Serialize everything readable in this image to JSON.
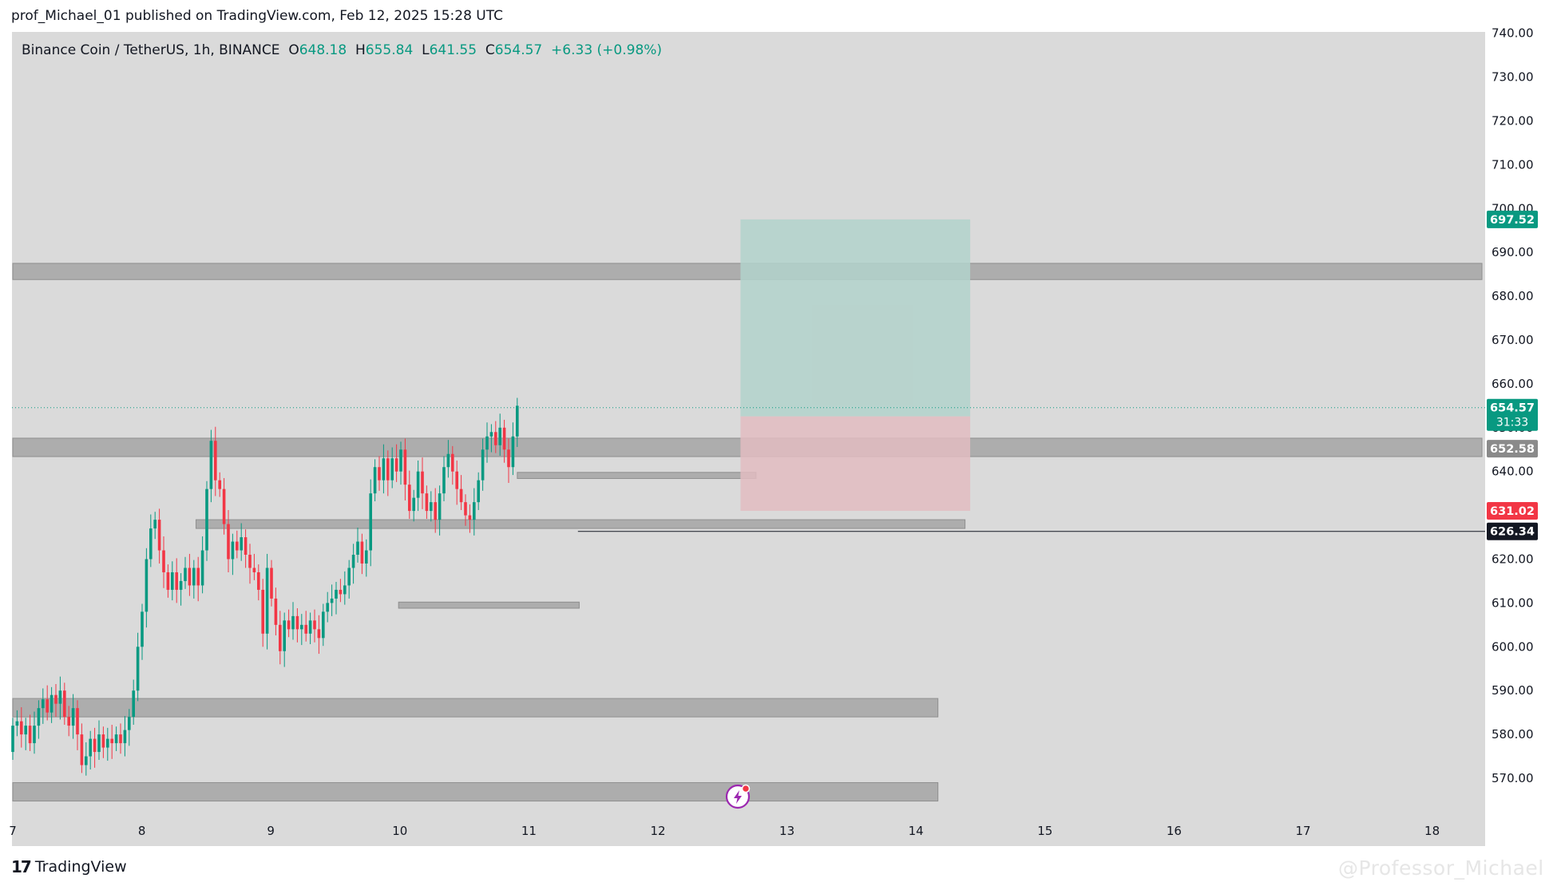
{
  "header": {
    "published": "prof_Michael_01 published on TradingView.com, Feb 12, 2025 15:28 UTC"
  },
  "legend": {
    "symbol": "Binance Coin / TetherUS, 1h, BINANCE",
    "o_label": "O",
    "o": "648.18",
    "h_label": "H",
    "h": "655.84",
    "l_label": "L",
    "l": "641.55",
    "c_label": "C",
    "c": "654.57",
    "change": "+6.33 (+0.98%)"
  },
  "colors": {
    "up": "#089981",
    "down": "#f23645",
    "chart_bg": "#dadada",
    "zone": "#a4a4a4",
    "target": "#b2d2cb",
    "stop": "#e2bcc1"
  },
  "footer": {
    "brand": "TradingView",
    "watermark": "@Professor_Michael"
  },
  "chart_data": {
    "type": "candlestick",
    "y_range": [
      565,
      742
    ],
    "x_range": [
      7,
      18.8
    ],
    "y_ticks": [
      570,
      580,
      590,
      600,
      610,
      620,
      630,
      640,
      650,
      660,
      670,
      680,
      690,
      700,
      710,
      720,
      730,
      740
    ],
    "x_ticks": [
      {
        "v": 7,
        "label": "7"
      },
      {
        "v": 8,
        "label": "8"
      },
      {
        "v": 9,
        "label": "9"
      },
      {
        "v": 10,
        "label": "10"
      },
      {
        "v": 11,
        "label": "11"
      },
      {
        "v": 12,
        "label": "12"
      },
      {
        "v": 13,
        "label": "13"
      },
      {
        "v": 14,
        "label": "14"
      },
      {
        "v": 15,
        "label": "15"
      },
      {
        "v": 16,
        "label": "16"
      },
      {
        "v": 17,
        "label": "17"
      },
      {
        "v": 18,
        "label": "18"
      }
    ],
    "price_labels": [
      {
        "text": "697.52",
        "price": 697.52,
        "kind": "target"
      },
      {
        "text": "654.57",
        "sub": "31:33",
        "price": 654.57,
        "kind": "current"
      },
      {
        "text": "652.58",
        "price": 645.2,
        "kind": "zone"
      },
      {
        "text": "631.02",
        "price": 631.02,
        "kind": "stop"
      },
      {
        "text": "626.34",
        "price": 626.34,
        "kind": "line"
      }
    ],
    "zones": [
      {
        "x0": 7,
        "x1": 18.5,
        "lo": 683.8,
        "hi": 687.5
      },
      {
        "x0": 7,
        "x1": 18.5,
        "lo": 643.4,
        "hi": 647.6
      },
      {
        "x0": 8.42,
        "x1": 14.38,
        "lo": 627.0,
        "hi": 629.0
      },
      {
        "x0": 10.91,
        "x1": 12.76,
        "lo": 638.4,
        "hi": 639.8
      },
      {
        "x0": 9.99,
        "x1": 11.39,
        "lo": 608.8,
        "hi": 610.2
      },
      {
        "x0": 7,
        "x1": 14.17,
        "lo": 584.0,
        "hi": 588.2
      },
      {
        "x0": 7,
        "x1": 14.17,
        "lo": 564.8,
        "hi": 569.0
      }
    ],
    "position": {
      "x0": 12.64,
      "x1": 14.42,
      "entry": 652.58,
      "target": 697.52,
      "stop": 631.02
    },
    "hline": {
      "x0": 11.38,
      "x1": 18.5,
      "price": 626.34
    },
    "last_price": 654.57,
    "candles": [
      [
        576,
        582
      ],
      [
        582,
        583
      ],
      [
        583,
        580
      ],
      [
        580,
        582
      ],
      [
        582,
        578
      ],
      [
        578,
        582
      ],
      [
        582,
        586
      ],
      [
        586,
        588
      ],
      [
        588,
        585
      ],
      [
        585,
        589
      ],
      [
        589,
        587
      ],
      [
        587,
        590
      ],
      [
        590,
        584
      ],
      [
        584,
        582
      ],
      [
        582,
        586
      ],
      [
        586,
        580
      ],
      [
        580,
        573
      ],
      [
        573,
        575
      ],
      [
        575,
        579
      ],
      [
        579,
        576
      ],
      [
        576,
        580
      ],
      [
        580,
        577
      ],
      [
        577,
        579
      ],
      [
        579,
        578
      ],
      [
        578,
        580
      ],
      [
        580,
        578
      ],
      [
        578,
        581
      ],
      [
        581,
        584
      ],
      [
        584,
        590
      ],
      [
        590,
        600
      ],
      [
        600,
        608
      ],
      [
        608,
        620
      ],
      [
        620,
        627
      ],
      [
        627,
        629
      ],
      [
        629,
        622
      ],
      [
        622,
        617
      ],
      [
        617,
        613
      ],
      [
        613,
        617
      ],
      [
        617,
        613
      ],
      [
        613,
        615
      ],
      [
        615,
        618
      ],
      [
        618,
        614
      ],
      [
        614,
        618
      ],
      [
        618,
        614
      ],
      [
        614,
        622
      ],
      [
        622,
        636
      ],
      [
        636,
        647
      ],
      [
        647,
        638
      ],
      [
        638,
        636
      ],
      [
        636,
        628
      ],
      [
        628,
        620
      ],
      [
        620,
        624
      ],
      [
        624,
        622
      ],
      [
        622,
        625
      ],
      [
        625,
        621
      ],
      [
        621,
        618
      ],
      [
        618,
        617
      ],
      [
        617,
        613
      ],
      [
        613,
        603
      ],
      [
        603,
        618
      ],
      [
        618,
        611
      ],
      [
        611,
        605
      ],
      [
        605,
        599
      ],
      [
        599,
        606
      ],
      [
        606,
        604
      ],
      [
        604,
        607
      ],
      [
        607,
        604
      ],
      [
        604,
        605
      ],
      [
        605,
        603
      ],
      [
        603,
        606
      ],
      [
        606,
        604
      ],
      [
        604,
        602
      ],
      [
        602,
        608
      ],
      [
        608,
        610
      ],
      [
        610,
        611
      ],
      [
        611,
        613
      ],
      [
        613,
        612
      ],
      [
        612,
        614
      ],
      [
        614,
        618
      ],
      [
        618,
        621
      ],
      [
        621,
        624
      ],
      [
        624,
        619
      ],
      [
        619,
        622
      ],
      [
        622,
        635
      ],
      [
        635,
        641
      ],
      [
        641,
        638
      ],
      [
        638,
        643
      ],
      [
        643,
        638
      ],
      [
        638,
        643
      ],
      [
        643,
        640
      ],
      [
        640,
        645
      ],
      [
        645,
        637
      ],
      [
        637,
        631
      ],
      [
        631,
        634
      ],
      [
        634,
        640
      ],
      [
        640,
        635
      ],
      [
        635,
        631
      ],
      [
        631,
        633
      ],
      [
        633,
        629
      ],
      [
        629,
        635
      ],
      [
        635,
        641
      ],
      [
        641,
        644
      ],
      [
        644,
        640
      ],
      [
        640,
        636
      ],
      [
        636,
        633
      ],
      [
        633,
        630
      ],
      [
        630,
        629
      ],
      [
        629,
        633
      ],
      [
        633,
        638
      ],
      [
        638,
        645
      ],
      [
        645,
        648
      ],
      [
        648,
        649
      ],
      [
        649,
        646
      ],
      [
        646,
        650
      ],
      [
        650,
        645
      ],
      [
        645,
        641
      ],
      [
        641,
        648
      ],
      [
        648,
        655
      ]
    ]
  }
}
